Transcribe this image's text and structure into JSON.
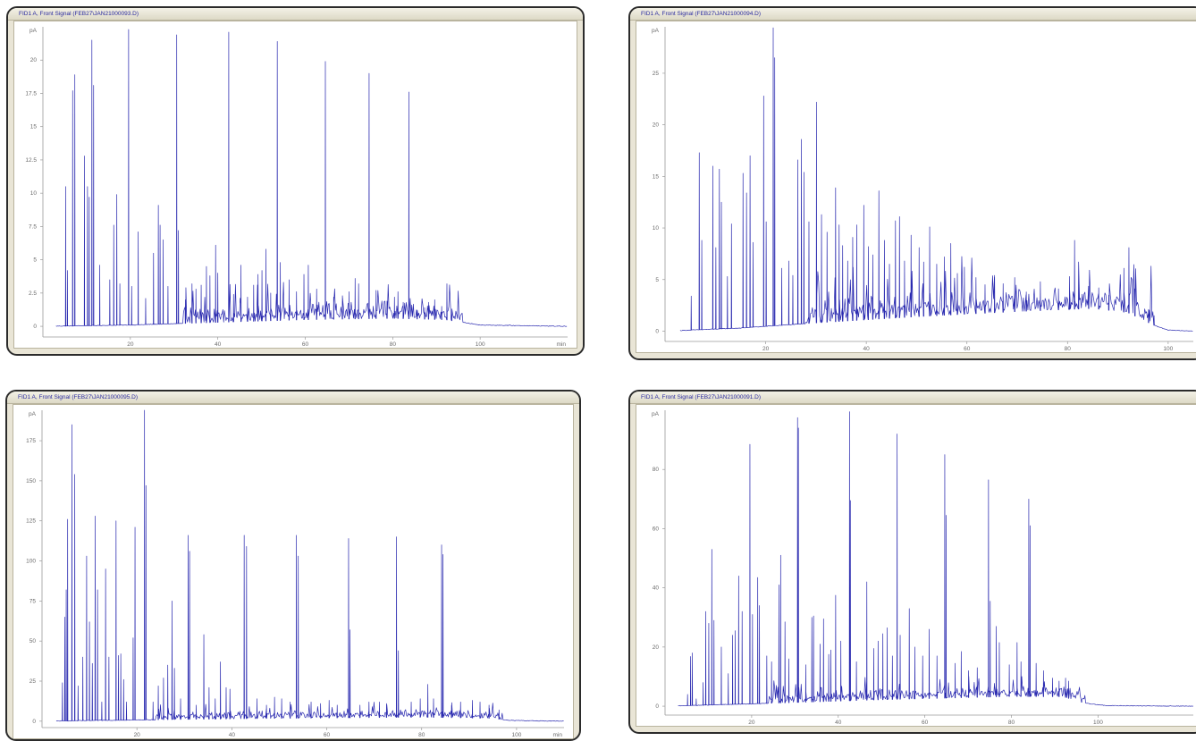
{
  "colors": {
    "trace": "#2b2bb0",
    "panel_bg": "#e9e5d6",
    "title_text": "#2a2aa0",
    "axis": "#6a6a6a"
  },
  "chart_data": [
    {
      "type": "line",
      "title": "FID1 A, Front Signal (FEB27\\JAN21000093.D)",
      "ylabel": "pA",
      "xlabel": "min",
      "xlim": [
        0,
        120
      ],
      "ylim": [
        -0.8,
        22.5
      ],
      "xticks": [
        20,
        40,
        60,
        80,
        100
      ],
      "yticks": [
        0,
        2.5,
        5,
        7.5,
        10,
        12.5,
        15,
        17.5,
        20
      ],
      "show_ylabel_label": true,
      "show_xlabel_label": true,
      "baseline": [
        [
          0,
          0
        ],
        [
          20,
          0.1
        ],
        [
          40,
          0.3
        ],
        [
          60,
          0.5
        ],
        [
          80,
          0.6
        ],
        [
          92,
          0.5
        ],
        [
          100,
          0.1
        ],
        [
          120,
          0
        ]
      ],
      "peaks": [
        [
          5.2,
          10.5
        ],
        [
          5.6,
          4.2
        ],
        [
          6.8,
          17.7
        ],
        [
          7.3,
          18.9
        ],
        [
          9.5,
          12.8
        ],
        [
          10.2,
          10.5
        ],
        [
          10.6,
          9.7
        ],
        [
          11.2,
          21.5
        ],
        [
          11.6,
          18.1
        ],
        [
          13.0,
          4.6
        ],
        [
          15.3,
          3.5
        ],
        [
          16.2,
          7.6
        ],
        [
          16.9,
          9.9
        ],
        [
          17.6,
          3.2
        ],
        [
          19.6,
          22.3
        ],
        [
          20.3,
          3.0
        ],
        [
          21.8,
          7.1
        ],
        [
          23.5,
          2.1
        ],
        [
          25.3,
          5.5
        ],
        [
          26.4,
          9.1
        ],
        [
          26.8,
          7.6
        ],
        [
          27.5,
          6.5
        ],
        [
          28.6,
          3.0
        ],
        [
          30.6,
          21.9
        ],
        [
          31.0,
          7.2
        ],
        [
          32.6,
          2.0
        ],
        [
          34.1,
          3.2
        ],
        [
          35.0,
          2.8
        ],
        [
          36.2,
          3.1
        ],
        [
          37.4,
          4.5
        ],
        [
          38.2,
          3.8
        ],
        [
          39.5,
          6.1
        ],
        [
          40.0,
          4.0
        ],
        [
          42.5,
          22.1
        ],
        [
          43.6,
          2.4
        ],
        [
          45.3,
          4.6
        ],
        [
          46.8,
          2.2
        ],
        [
          48.2,
          3.1
        ],
        [
          49.2,
          3.9
        ],
        [
          50.1,
          4.2
        ],
        [
          51.0,
          5.8
        ],
        [
          52.1,
          2.5
        ],
        [
          53.6,
          21.4
        ],
        [
          54.3,
          4.8
        ],
        [
          56.3,
          3.5
        ],
        [
          58.0,
          2.6
        ],
        [
          59.7,
          3.9
        ],
        [
          60.7,
          4.6
        ],
        [
          62.6,
          2.8
        ],
        [
          64.6,
          19.9
        ],
        [
          66.5,
          2.2
        ],
        [
          68.5,
          2.3
        ],
        [
          70.0,
          2.6
        ],
        [
          71.4,
          3.6
        ],
        [
          72.2,
          3.2
        ],
        [
          74.6,
          19.0
        ],
        [
          76.2,
          2.7
        ],
        [
          78.7,
          1.9
        ],
        [
          80.4,
          2.2
        ],
        [
          81.2,
          2.6
        ],
        [
          82.4,
          1.8
        ],
        [
          83.7,
          17.6
        ],
        [
          85.6,
          1.1
        ],
        [
          87.3,
          1.4
        ],
        [
          88.2,
          1.8
        ],
        [
          89.6,
          2.0
        ],
        [
          91.2,
          1.5
        ],
        [
          92.4,
          3.2
        ],
        [
          93.5,
          0.9
        ]
      ],
      "noise": {
        "start": 32,
        "end": 96,
        "amp": 1.3,
        "density": 2.2
      }
    },
    {
      "type": "line",
      "title": "FID1 A, Front Signal (FEB27\\JAN21000094.D)",
      "ylabel": "pA",
      "xlabel": "min",
      "xlim": [
        0,
        105
      ],
      "ylim": [
        -1.0,
        29.5
      ],
      "xticks": [
        20,
        40,
        60,
        80,
        100
      ],
      "yticks": [
        0,
        5,
        10,
        15,
        20,
        25
      ],
      "show_ylabel_label": true,
      "show_xlabel_label": false,
      "baseline": [
        [
          0,
          0
        ],
        [
          15,
          0.3
        ],
        [
          30,
          0.8
        ],
        [
          50,
          1.4
        ],
        [
          70,
          1.9
        ],
        [
          85,
          2.2
        ],
        [
          92,
          1.8
        ],
        [
          97,
          0.6
        ],
        [
          100,
          0.1
        ],
        [
          105,
          0
        ]
      ],
      "peaks": [
        [
          5.2,
          3.4
        ],
        [
          6.8,
          17.3
        ],
        [
          7.3,
          8.8
        ],
        [
          9.5,
          16.0
        ],
        [
          10.1,
          8.1
        ],
        [
          10.8,
          15.7
        ],
        [
          11.2,
          12.5
        ],
        [
          12.4,
          5.3
        ],
        [
          13.2,
          10.4
        ],
        [
          15.5,
          15.3
        ],
        [
          16.2,
          13.4
        ],
        [
          16.9,
          17.0
        ],
        [
          17.5,
          8.6
        ],
        [
          19.6,
          22.8
        ],
        [
          20.1,
          10.6
        ],
        [
          21.5,
          29.4
        ],
        [
          21.8,
          26.5
        ],
        [
          23.2,
          6.1
        ],
        [
          24.6,
          6.8
        ],
        [
          25.4,
          5.4
        ],
        [
          26.4,
          16.6
        ],
        [
          27.1,
          18.6
        ],
        [
          27.6,
          15.4
        ],
        [
          28.6,
          10.6
        ],
        [
          30.1,
          22.2
        ],
        [
          31.1,
          11.3
        ],
        [
          32.2,
          9.6
        ],
        [
          33.9,
          13.9
        ],
        [
          34.6,
          10.3
        ],
        [
          35.3,
          8.3
        ],
        [
          36.3,
          6.8
        ],
        [
          37.3,
          9.1
        ],
        [
          38.1,
          10.3
        ],
        [
          39.5,
          12.2
        ],
        [
          40.4,
          8.2
        ],
        [
          41.3,
          7.4
        ],
        [
          42.5,
          13.6
        ],
        [
          43.6,
          8.8
        ],
        [
          44.6,
          6.5
        ],
        [
          45.8,
          10.7
        ],
        [
          46.6,
          11.1
        ],
        [
          47.6,
          6.8
        ],
        [
          48.9,
          9.3
        ],
        [
          50.5,
          8.1
        ],
        [
          51.4,
          6.7
        ],
        [
          52.6,
          10.1
        ],
        [
          54.0,
          6.5
        ],
        [
          55.5,
          7.2
        ],
        [
          56.8,
          8.5
        ],
        [
          58.1,
          5.6
        ],
        [
          59.5,
          6.2
        ],
        [
          61.8,
          5.2
        ],
        [
          63.6,
          4.5
        ],
        [
          65.5,
          5.4
        ],
        [
          67.2,
          4.6
        ],
        [
          69.5,
          5.2
        ],
        [
          71.8,
          3.8
        ],
        [
          74.6,
          4.8
        ],
        [
          78.2,
          4.1
        ],
        [
          80.4,
          5.3
        ],
        [
          81.4,
          8.8
        ],
        [
          82.2,
          6.7
        ],
        [
          84.2,
          4.0
        ],
        [
          86.2,
          4.2
        ],
        [
          88.2,
          3.5
        ],
        [
          91.2,
          6.1
        ],
        [
          92.2,
          8.1
        ],
        [
          93.4,
          4.1
        ],
        [
          96.1,
          2.1
        ],
        [
          97.2,
          1.5
        ]
      ],
      "noise": {
        "start": 28,
        "end": 97,
        "amp": 2.2,
        "density": 2.6
      }
    },
    {
      "type": "line",
      "title": "FID1 A, Front Signal (FEB27\\JAN21000095.D)",
      "ylabel": "pA",
      "xlabel": "min",
      "xlim": [
        0,
        110
      ],
      "ylim": [
        -4,
        194
      ],
      "xticks": [
        20,
        40,
        60,
        80,
        100
      ],
      "yticks": [
        0,
        25,
        50,
        75,
        100,
        125,
        150,
        175
      ],
      "show_ylabel_label": true,
      "show_xlabel_label": true,
      "baseline": [
        [
          0,
          0
        ],
        [
          20,
          0.8
        ],
        [
          50,
          1.8
        ],
        [
          80,
          2.5
        ],
        [
          95,
          1.8
        ],
        [
          98,
          0.5
        ],
        [
          110,
          0
        ]
      ],
      "peaks": [
        [
          4.3,
          24
        ],
        [
          4.8,
          65
        ],
        [
          5.1,
          82
        ],
        [
          5.4,
          126
        ],
        [
          6.3,
          185
        ],
        [
          6.9,
          154
        ],
        [
          7.6,
          22
        ],
        [
          8.6,
          40
        ],
        [
          9.4,
          103
        ],
        [
          10.0,
          62
        ],
        [
          10.6,
          36
        ],
        [
          11.2,
          128
        ],
        [
          11.7,
          82
        ],
        [
          12.6,
          12
        ],
        [
          13.4,
          95
        ],
        [
          14.1,
          40
        ],
        [
          15.6,
          125
        ],
        [
          16.1,
          41
        ],
        [
          16.6,
          42
        ],
        [
          17.2,
          26
        ],
        [
          17.8,
          12
        ],
        [
          19.2,
          52
        ],
        [
          19.6,
          121
        ],
        [
          21.6,
          194
        ],
        [
          21.9,
          147
        ],
        [
          23.4,
          12
        ],
        [
          24.5,
          22
        ],
        [
          25.6,
          27
        ],
        [
          26.5,
          35
        ],
        [
          27.4,
          75
        ],
        [
          27.9,
          33
        ],
        [
          29.2,
          14
        ],
        [
          30.8,
          116
        ],
        [
          31.1,
          106
        ],
        [
          32.5,
          10
        ],
        [
          34.1,
          54
        ],
        [
          35.2,
          21
        ],
        [
          36.5,
          14
        ],
        [
          37.6,
          37
        ],
        [
          38.8,
          21
        ],
        [
          39.6,
          20
        ],
        [
          42.6,
          116
        ],
        [
          43.1,
          109
        ],
        [
          45.3,
          14
        ],
        [
          47.3,
          10
        ],
        [
          49.0,
          15
        ],
        [
          50.5,
          14
        ],
        [
          52.3,
          12
        ],
        [
          53.6,
          116
        ],
        [
          54.0,
          103
        ],
        [
          56.7,
          12
        ],
        [
          58.7,
          11
        ],
        [
          60.5,
          13
        ],
        [
          62.2,
          10
        ],
        [
          64.6,
          114
        ],
        [
          64.9,
          57
        ],
        [
          67.0,
          10
        ],
        [
          68.9,
          12
        ],
        [
          71.1,
          12
        ],
        [
          72.6,
          11
        ],
        [
          74.7,
          115
        ],
        [
          75.1,
          44
        ],
        [
          77.8,
          12
        ],
        [
          79.7,
          14
        ],
        [
          81.3,
          23
        ],
        [
          82.5,
          14
        ],
        [
          84.2,
          110
        ],
        [
          84.5,
          104
        ],
        [
          86.3,
          10
        ],
        [
          88.2,
          12
        ],
        [
          90.7,
          13
        ],
        [
          92.3,
          12
        ],
        [
          94.2,
          10
        ],
        [
          96.3,
          7
        ]
      ],
      "noise": {
        "start": 24,
        "end": 97,
        "amp": 5.0,
        "density": 2.0
      }
    },
    {
      "type": "line",
      "title": "FID1 A, Front Signal (FEB27\\JAN21000091.D)",
      "ylabel": "pA",
      "xlabel": "min",
      "xlim": [
        0,
        122
      ],
      "ylim": [
        -3,
        100
      ],
      "xticks": [
        20,
        40,
        60,
        80,
        100
      ],
      "yticks": [
        0,
        20,
        40,
        60,
        80
      ],
      "show_ylabel_label": true,
      "show_xlabel_label": false,
      "baseline": [
        [
          0,
          0
        ],
        [
          20,
          0.8
        ],
        [
          50,
          2.2
        ],
        [
          80,
          3.3
        ],
        [
          92,
          3.2
        ],
        [
          97,
          1.0
        ],
        [
          102,
          0.2
        ],
        [
          122,
          0
        ]
      ],
      "peaks": [
        [
          5.2,
          4.0
        ],
        [
          5.9,
          16.8
        ],
        [
          6.3,
          18.0
        ],
        [
          7.2,
          2.5
        ],
        [
          8.8,
          8.0
        ],
        [
          9.4,
          32.0
        ],
        [
          10.1,
          28.0
        ],
        [
          10.8,
          53.0
        ],
        [
          11.3,
          29.0
        ],
        [
          13.0,
          20.0
        ],
        [
          14.6,
          11.0
        ],
        [
          15.6,
          24.0
        ],
        [
          16.2,
          25.5
        ],
        [
          17.0,
          44.0
        ],
        [
          17.8,
          32.0
        ],
        [
          19.6,
          88.5
        ],
        [
          20.2,
          31.0
        ],
        [
          21.4,
          43.5
        ],
        [
          21.8,
          34.0
        ],
        [
          23.5,
          17.0
        ],
        [
          24.6,
          15.0
        ],
        [
          26.3,
          41.0
        ],
        [
          26.7,
          51.0
        ],
        [
          27.7,
          28.5
        ],
        [
          28.6,
          16.0
        ],
        [
          30.6,
          97.5
        ],
        [
          30.8,
          94.0
        ],
        [
          32.5,
          14.0
        ],
        [
          33.9,
          30.0
        ],
        [
          34.3,
          30.5
        ],
        [
          35.8,
          21.0
        ],
        [
          36.6,
          29.5
        ],
        [
          37.8,
          17.5
        ],
        [
          38.3,
          19.0
        ],
        [
          39.4,
          37.5
        ],
        [
          40.6,
          22.0
        ],
        [
          42.6,
          99.5
        ],
        [
          42.8,
          69.5
        ],
        [
          44.2,
          15.0
        ],
        [
          46.6,
          42.0
        ],
        [
          48.2,
          19.5
        ],
        [
          49.2,
          22.0
        ],
        [
          50.3,
          24.5
        ],
        [
          51.3,
          26.5
        ],
        [
          52.5,
          17.0
        ],
        [
          53.6,
          92.0
        ],
        [
          54.3,
          24.0
        ],
        [
          56.4,
          33.0
        ],
        [
          57.7,
          20.0
        ],
        [
          59.5,
          17.0
        ],
        [
          61.0,
          26.0
        ],
        [
          62.8,
          17.0
        ],
        [
          64.6,
          85.0
        ],
        [
          64.9,
          64.5
        ],
        [
          67.0,
          14.5
        ],
        [
          68.4,
          18.5
        ],
        [
          70.1,
          12.0
        ],
        [
          72.1,
          13.0
        ],
        [
          74.7,
          76.5
        ],
        [
          75.1,
          35.5
        ],
        [
          76.5,
          27.0
        ],
        [
          77.2,
          21.5
        ],
        [
          79.5,
          14.0
        ],
        [
          81.3,
          21.5
        ],
        [
          82.2,
          15.0
        ],
        [
          84.0,
          70.0
        ],
        [
          84.3,
          61.0
        ],
        [
          85.7,
          14.5
        ],
        [
          87.4,
          12.0
        ],
        [
          89.5,
          9.5
        ],
        [
          91.0,
          8.5
        ],
        [
          92.5,
          9.5
        ],
        [
          93.2,
          8.5
        ],
        [
          96.2,
          2.0
        ]
      ],
      "noise": {
        "start": 24,
        "end": 97,
        "amp": 3.6,
        "density": 2.2
      }
    }
  ]
}
